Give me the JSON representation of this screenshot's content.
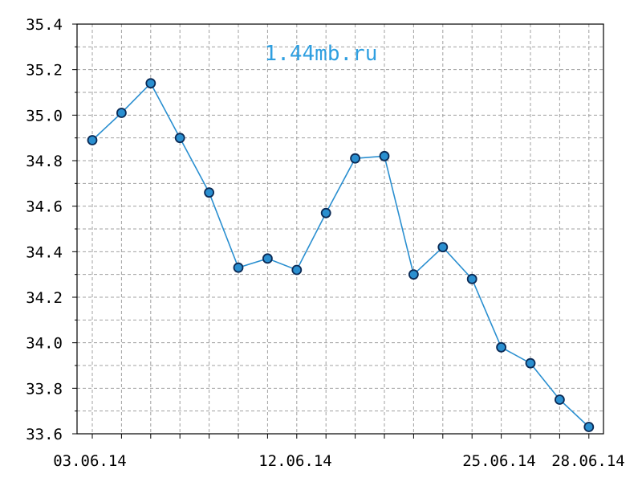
{
  "chart_data": {
    "type": "line",
    "title": "",
    "xlabel": "",
    "ylabel": "",
    "watermark": "1.44mb.ru",
    "ylim": [
      33.6,
      35.4
    ],
    "y_ticks": [
      "35.4",
      "35.2",
      "35.0",
      "34.8",
      "34.6",
      "34.4",
      "34.2",
      "34.0",
      "33.8",
      "33.6"
    ],
    "x_tick_labels": [
      "03.06.14",
      "12.06.14",
      "25.06.14",
      "28.06.14"
    ],
    "grid": true,
    "series": [
      {
        "values": [
          34.89,
          35.01,
          35.14,
          34.9,
          34.66,
          34.33,
          34.37,
          34.32,
          34.57,
          34.81,
          34.82,
          34.3,
          34.42,
          34.28,
          33.98,
          33.91,
          33.75,
          33.63
        ]
      }
    ],
    "colors": {
      "line": "#2a8fd0",
      "marker_fill": "#2a8fd0",
      "marker_edge": "#0b2a55",
      "grid": "#a0a0a0",
      "axis": "#000000",
      "watermark": "#2f9fe0"
    }
  }
}
